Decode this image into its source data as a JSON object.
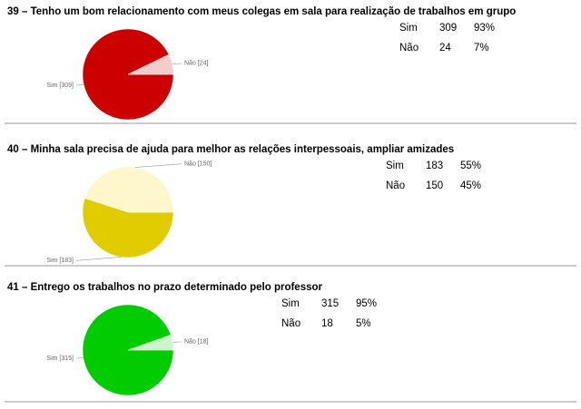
{
  "chart_data": [
    {
      "type": "pie",
      "title": "39 – Tenho um bom relacionamento com meus colegas em sala para realização de trabalhos em grupo",
      "categories": [
        "Sim",
        "Não"
      ],
      "values": [
        309,
        24
      ],
      "value_labels": [
        "Sim [309]",
        "Não [24]"
      ],
      "percents": [
        93,
        7
      ],
      "percent_labels": [
        "93%",
        "7%"
      ],
      "colors": [
        "#cc0000",
        "#f4cccc"
      ]
    },
    {
      "type": "pie",
      "title": "40 – Minha sala precisa de ajuda para melhor as relações interpessoais, ampliar amizades",
      "categories": [
        "Sim",
        "Não"
      ],
      "values": [
        183,
        150
      ],
      "value_labels": [
        "Sim [183]",
        "Não [150]"
      ],
      "percents": [
        55,
        45
      ],
      "percent_labels": [
        "55%",
        "45%"
      ],
      "colors": [
        "#e0cc00",
        "#fff7cc"
      ]
    },
    {
      "type": "pie",
      "title": "41 – Entrego os trabalhos no prazo determinado pelo professor",
      "categories": [
        "Sim",
        "Não"
      ],
      "values": [
        315,
        18
      ],
      "value_labels": [
        "Sim [315]",
        "Não [18]"
      ],
      "percents": [
        95,
        5
      ],
      "percent_labels": [
        "95%",
        "5%"
      ],
      "colors": [
        "#00cc00",
        "#ccf5cc"
      ]
    }
  ]
}
